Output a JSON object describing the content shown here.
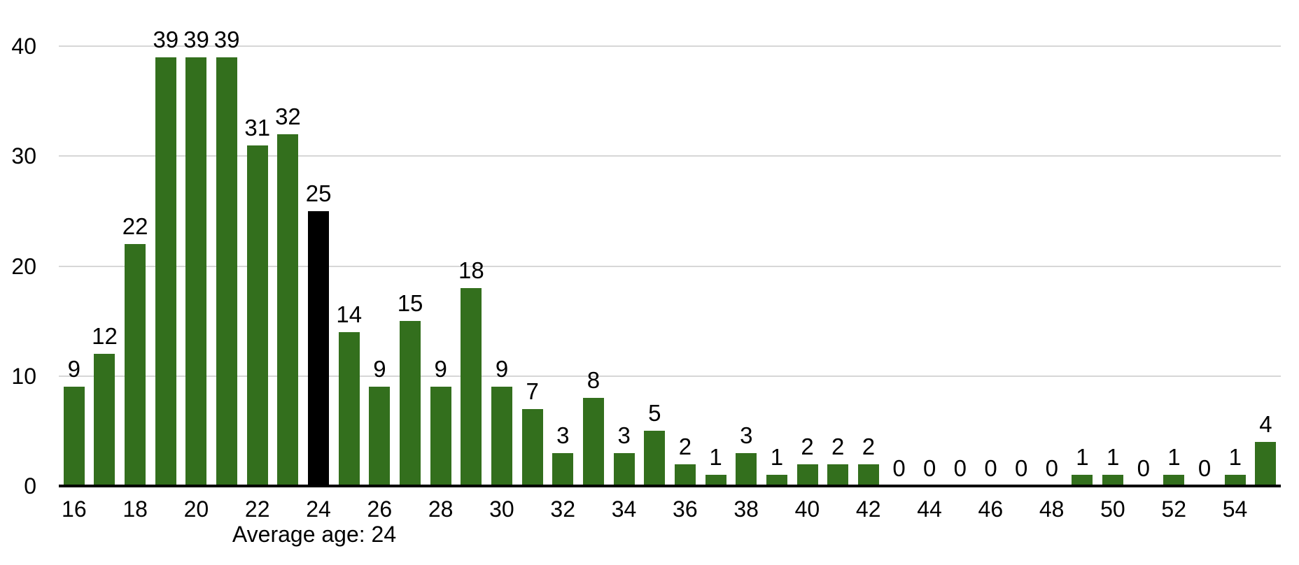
{
  "chart_data": {
    "type": "bar",
    "title": "",
    "xlabel": "",
    "ylabel": "",
    "x": [
      16,
      17,
      18,
      19,
      20,
      21,
      22,
      23,
      24,
      25,
      26,
      27,
      28,
      29,
      30,
      31,
      32,
      33,
      34,
      35,
      36,
      37,
      38,
      39,
      40,
      41,
      42,
      43,
      44,
      45,
      46,
      47,
      48,
      49,
      50,
      51,
      52,
      53,
      54,
      55
    ],
    "values": [
      9,
      12,
      22,
      39,
      39,
      39,
      31,
      32,
      25,
      14,
      9,
      15,
      9,
      18,
      9,
      7,
      3,
      8,
      3,
      5,
      2,
      1,
      3,
      1,
      2,
      2,
      2,
      0,
      0,
      0,
      0,
      0,
      0,
      1,
      1,
      0,
      1,
      0,
      1,
      4
    ],
    "data_labels_shown": true,
    "highlight_x": 24,
    "bar_color": "#336f1d",
    "highlight_color": "#000000",
    "ylim": [
      0,
      40
    ],
    "yticks": [
      "0",
      "10",
      "20",
      "30",
      "40"
    ],
    "xticks": [
      "16",
      "18",
      "20",
      "22",
      "24",
      "26",
      "28",
      "30",
      "32",
      "34",
      "36",
      "38",
      "40",
      "42",
      "44",
      "46",
      "48",
      "50",
      "52",
      "54"
    ],
    "grid": true,
    "gridline_color": "#d7d7d7",
    "axis_line_color": "#000000",
    "annotation": "Average age: 24",
    "legend_position": "none"
  }
}
